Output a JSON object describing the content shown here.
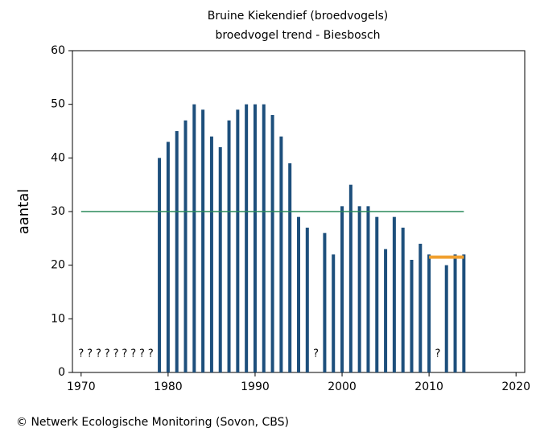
{
  "chart_data": {
    "type": "bar",
    "title": [
      "Bruine Kiekendief (broedvogels)",
      "broedvogel trend - Biesbosch"
    ],
    "ylabel": "aantal",
    "footer": "© Netwerk Ecologische Monitoring (Sovon, CBS)",
    "x": [
      1970,
      1971,
      1972,
      1973,
      1974,
      1975,
      1976,
      1977,
      1978,
      1979,
      1980,
      1981,
      1982,
      1983,
      1984,
      1985,
      1986,
      1987,
      1988,
      1989,
      1990,
      1991,
      1992,
      1993,
      1994,
      1995,
      1996,
      1997,
      1998,
      1999,
      2000,
      2001,
      2002,
      2003,
      2004,
      2005,
      2006,
      2007,
      2008,
      2009,
      2010,
      2011,
      2012,
      2013,
      2014
    ],
    "values": [
      null,
      null,
      null,
      null,
      null,
      null,
      null,
      null,
      null,
      40,
      43,
      45,
      47,
      50,
      49,
      44,
      42,
      47,
      49,
      50,
      50,
      50,
      48,
      44,
      39,
      29,
      27,
      null,
      26,
      22,
      31,
      35,
      31,
      31,
      29,
      23,
      29,
      27,
      21,
      24,
      22,
      null,
      20,
      22,
      22
    ],
    "unknown_label": "?",
    "color": "#1d4f7c",
    "lines": [
      {
        "color": "#2a8a5a",
        "x": [
          1970,
          2014
        ],
        "y": [
          30,
          30
        ]
      },
      {
        "color": "#f0a030",
        "x": [
          2010,
          2014
        ],
        "y": [
          21.5,
          21.5
        ]
      }
    ],
    "xlim": [
      1969,
      2021
    ],
    "ylim": [
      0,
      60
    ],
    "xticks": [
      1970,
      1980,
      1990,
      2000,
      2010,
      2020
    ],
    "yticks": [
      0,
      10,
      20,
      30,
      40,
      50,
      60
    ]
  }
}
